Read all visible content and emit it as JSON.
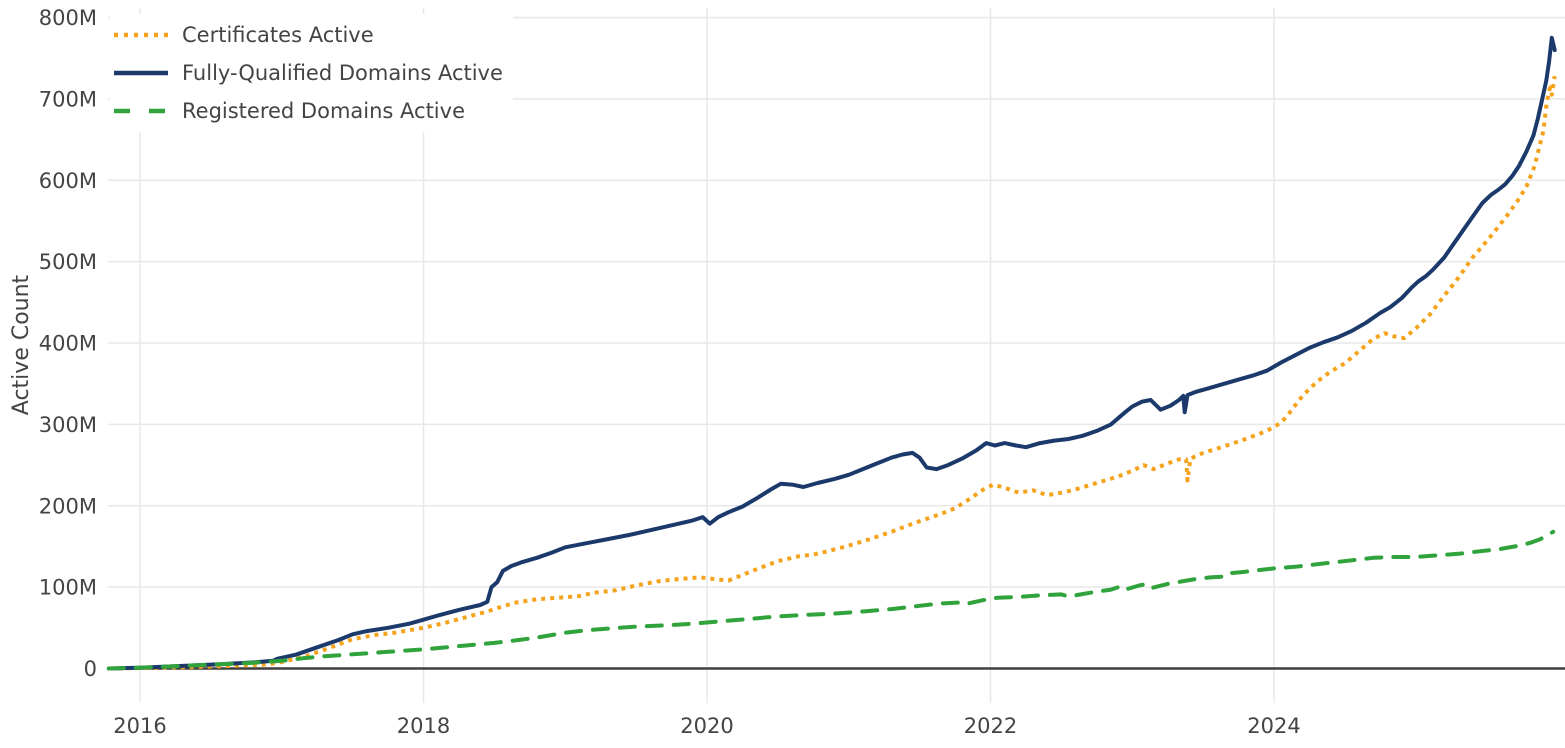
{
  "chart_data": {
    "type": "line",
    "title": "",
    "xlabel": "",
    "ylabel": "Active Count",
    "grid": true,
    "legend_position": "top-left",
    "x_range": [
      2015.75,
      2026.1
    ],
    "y_range": [
      0,
      800
    ],
    "y_unit": "millions",
    "x_ticks": [
      {
        "value": 2016,
        "label": "2016"
      },
      {
        "value": 2018,
        "label": "2018"
      },
      {
        "value": 2020,
        "label": "2020"
      },
      {
        "value": 2022,
        "label": "2022"
      },
      {
        "value": 2024,
        "label": "2024"
      }
    ],
    "y_ticks": [
      {
        "value": 0,
        "label": "0"
      },
      {
        "value": 100,
        "label": "100M"
      },
      {
        "value": 200,
        "label": "200M"
      },
      {
        "value": 300,
        "label": "300M"
      },
      {
        "value": 400,
        "label": "400M"
      },
      {
        "value": 500,
        "label": "500M"
      },
      {
        "value": 600,
        "label": "600M"
      },
      {
        "value": 700,
        "label": "700M"
      },
      {
        "value": 800,
        "label": "800M"
      }
    ],
    "series": [
      {
        "name": "Certificates Active",
        "color": "#f5a31c",
        "style": "dotted",
        "points": [
          [
            2015.78,
            0
          ],
          [
            2016.0,
            0.5
          ],
          [
            2016.3,
            1.5
          ],
          [
            2016.6,
            3
          ],
          [
            2016.9,
            5
          ],
          [
            2017.0,
            8
          ],
          [
            2017.15,
            14
          ],
          [
            2017.3,
            23
          ],
          [
            2017.5,
            36
          ],
          [
            2017.65,
            41
          ],
          [
            2017.8,
            44
          ],
          [
            2018.0,
            50
          ],
          [
            2018.15,
            56
          ],
          [
            2018.3,
            63
          ],
          [
            2018.45,
            70
          ],
          [
            2018.55,
            76
          ],
          [
            2018.65,
            81
          ],
          [
            2018.8,
            85
          ],
          [
            2018.95,
            87
          ],
          [
            2019.1,
            89
          ],
          [
            2019.2,
            93
          ],
          [
            2019.35,
            96
          ],
          [
            2019.5,
            102
          ],
          [
            2019.65,
            107
          ],
          [
            2019.8,
            110
          ],
          [
            2019.95,
            112
          ],
          [
            2020.05,
            110
          ],
          [
            2020.15,
            108
          ],
          [
            2020.25,
            115
          ],
          [
            2020.35,
            122
          ],
          [
            2020.5,
            132
          ],
          [
            2020.65,
            138
          ],
          [
            2020.75,
            140
          ],
          [
            2020.85,
            144
          ],
          [
            2021.0,
            151
          ],
          [
            2021.15,
            159
          ],
          [
            2021.3,
            168
          ],
          [
            2021.45,
            178
          ],
          [
            2021.55,
            184
          ],
          [
            2021.65,
            190
          ],
          [
            2021.75,
            197
          ],
          [
            2021.85,
            208
          ],
          [
            2021.95,
            220
          ],
          [
            2022.02,
            226
          ],
          [
            2022.1,
            222
          ],
          [
            2022.2,
            216
          ],
          [
            2022.3,
            219
          ],
          [
            2022.4,
            213
          ],
          [
            2022.5,
            216
          ],
          [
            2022.6,
            220
          ],
          [
            2022.75,
            228
          ],
          [
            2022.9,
            236
          ],
          [
            2023.0,
            243
          ],
          [
            2023.08,
            250
          ],
          [
            2023.15,
            245
          ],
          [
            2023.25,
            252
          ],
          [
            2023.33,
            257
          ],
          [
            2023.38,
            257
          ],
          [
            2023.39,
            231
          ],
          [
            2023.41,
            258
          ],
          [
            2023.5,
            265
          ],
          [
            2023.65,
            273
          ],
          [
            2023.8,
            282
          ],
          [
            2023.95,
            292
          ],
          [
            2024.05,
            302
          ],
          [
            2024.1,
            312
          ],
          [
            2024.2,
            335
          ],
          [
            2024.3,
            352
          ],
          [
            2024.4,
            365
          ],
          [
            2024.5,
            375
          ],
          [
            2024.6,
            390
          ],
          [
            2024.7,
            405
          ],
          [
            2024.78,
            412
          ],
          [
            2024.85,
            408
          ],
          [
            2024.92,
            406
          ],
          [
            2025.0,
            418
          ],
          [
            2025.1,
            435
          ],
          [
            2025.2,
            458
          ],
          [
            2025.3,
            480
          ],
          [
            2025.4,
            505
          ],
          [
            2025.5,
            525
          ],
          [
            2025.57,
            540
          ],
          [
            2025.65,
            558
          ],
          [
            2025.72,
            575
          ],
          [
            2025.78,
            592
          ],
          [
            2025.84,
            618
          ],
          [
            2025.87,
            640
          ],
          [
            2025.9,
            660
          ],
          [
            2025.92,
            690
          ],
          [
            2025.94,
            710
          ],
          [
            2025.95,
            714
          ],
          [
            2025.96,
            705
          ],
          [
            2025.98,
            728
          ]
        ]
      },
      {
        "name": "Fully-Qualified Domains Active",
        "color": "#1b3a6b",
        "style": "solid",
        "points": [
          [
            2015.78,
            0
          ],
          [
            2016.0,
            1
          ],
          [
            2016.2,
            2.5
          ],
          [
            2016.4,
            4
          ],
          [
            2016.6,
            5.5
          ],
          [
            2016.8,
            7.5
          ],
          [
            2016.94,
            9.5
          ],
          [
            2016.97,
            12
          ],
          [
            2017.1,
            17
          ],
          [
            2017.25,
            26
          ],
          [
            2017.4,
            35
          ],
          [
            2017.5,
            42
          ],
          [
            2017.6,
            46
          ],
          [
            2017.75,
            50
          ],
          [
            2017.9,
            55
          ],
          [
            2018.0,
            60
          ],
          [
            2018.1,
            65
          ],
          [
            2018.25,
            72
          ],
          [
            2018.4,
            78
          ],
          [
            2018.45,
            82
          ],
          [
            2018.48,
            100
          ],
          [
            2018.52,
            106
          ],
          [
            2018.56,
            120
          ],
          [
            2018.62,
            126
          ],
          [
            2018.7,
            131
          ],
          [
            2018.8,
            136
          ],
          [
            2018.9,
            142
          ],
          [
            2019.0,
            149
          ],
          [
            2019.15,
            154
          ],
          [
            2019.3,
            159
          ],
          [
            2019.45,
            164
          ],
          [
            2019.6,
            170
          ],
          [
            2019.75,
            176
          ],
          [
            2019.9,
            182
          ],
          [
            2019.97,
            186
          ],
          [
            2020.02,
            178
          ],
          [
            2020.08,
            186
          ],
          [
            2020.15,
            192
          ],
          [
            2020.25,
            199
          ],
          [
            2020.35,
            209
          ],
          [
            2020.45,
            220
          ],
          [
            2020.52,
            227
          ],
          [
            2020.6,
            226
          ],
          [
            2020.68,
            223
          ],
          [
            2020.78,
            228
          ],
          [
            2020.9,
            233
          ],
          [
            2021.0,
            238
          ],
          [
            2021.1,
            245
          ],
          [
            2021.2,
            252
          ],
          [
            2021.3,
            259
          ],
          [
            2021.38,
            263
          ],
          [
            2021.45,
            265
          ],
          [
            2021.5,
            259
          ],
          [
            2021.55,
            247
          ],
          [
            2021.62,
            245
          ],
          [
            2021.7,
            250
          ],
          [
            2021.8,
            258
          ],
          [
            2021.9,
            268
          ],
          [
            2021.97,
            277
          ],
          [
            2022.03,
            274
          ],
          [
            2022.1,
            277
          ],
          [
            2022.18,
            274
          ],
          [
            2022.25,
            272
          ],
          [
            2022.35,
            277
          ],
          [
            2022.45,
            280
          ],
          [
            2022.55,
            282
          ],
          [
            2022.65,
            286
          ],
          [
            2022.75,
            292
          ],
          [
            2022.85,
            300
          ],
          [
            2022.95,
            315
          ],
          [
            2023.0,
            322
          ],
          [
            2023.07,
            328
          ],
          [
            2023.13,
            330
          ],
          [
            2023.2,
            318
          ],
          [
            2023.27,
            323
          ],
          [
            2023.33,
            330
          ],
          [
            2023.36,
            335
          ],
          [
            2023.37,
            315
          ],
          [
            2023.39,
            336
          ],
          [
            2023.45,
            340
          ],
          [
            2023.55,
            345
          ],
          [
            2023.65,
            350
          ],
          [
            2023.75,
            355
          ],
          [
            2023.85,
            360
          ],
          [
            2023.95,
            366
          ],
          [
            2024.05,
            376
          ],
          [
            2024.15,
            385
          ],
          [
            2024.25,
            394
          ],
          [
            2024.35,
            401
          ],
          [
            2024.45,
            407
          ],
          [
            2024.55,
            415
          ],
          [
            2024.65,
            425
          ],
          [
            2024.75,
            437
          ],
          [
            2024.82,
            444
          ],
          [
            2024.9,
            455
          ],
          [
            2024.97,
            468
          ],
          [
            2025.02,
            476
          ],
          [
            2025.07,
            482
          ],
          [
            2025.12,
            490
          ],
          [
            2025.2,
            505
          ],
          [
            2025.3,
            530
          ],
          [
            2025.4,
            555
          ],
          [
            2025.47,
            572
          ],
          [
            2025.53,
            582
          ],
          [
            2025.58,
            588
          ],
          [
            2025.63,
            595
          ],
          [
            2025.68,
            605
          ],
          [
            2025.73,
            618
          ],
          [
            2025.78,
            635
          ],
          [
            2025.83,
            655
          ],
          [
            2025.86,
            675
          ],
          [
            2025.89,
            698
          ],
          [
            2025.92,
            722
          ],
          [
            2025.94,
            745
          ],
          [
            2025.96,
            775
          ],
          [
            2025.98,
            760
          ]
        ]
      },
      {
        "name": "Registered Domains Active",
        "color": "#31a33c",
        "style": "dashed",
        "points": [
          [
            2015.78,
            0
          ],
          [
            2016.0,
            1
          ],
          [
            2016.2,
            2.5
          ],
          [
            2016.4,
            4
          ],
          [
            2016.6,
            5.5
          ],
          [
            2016.8,
            7
          ],
          [
            2017.0,
            9.5
          ],
          [
            2017.15,
            12.5
          ],
          [
            2017.3,
            15
          ],
          [
            2017.5,
            17.5
          ],
          [
            2017.75,
            20.5
          ],
          [
            2018.0,
            23.5
          ],
          [
            2018.25,
            27.5
          ],
          [
            2018.5,
            31.5
          ],
          [
            2018.65,
            34.5
          ],
          [
            2018.8,
            38
          ],
          [
            2019.0,
            44
          ],
          [
            2019.15,
            47
          ],
          [
            2019.3,
            49
          ],
          [
            2019.5,
            51.5
          ],
          [
            2019.7,
            53
          ],
          [
            2019.9,
            55
          ],
          [
            2020.1,
            58
          ],
          [
            2020.3,
            61
          ],
          [
            2020.5,
            64
          ],
          [
            2020.7,
            66
          ],
          [
            2020.9,
            67.5
          ],
          [
            2021.1,
            70
          ],
          [
            2021.3,
            73
          ],
          [
            2021.5,
            77
          ],
          [
            2021.65,
            80
          ],
          [
            2021.78,
            81
          ],
          [
            2021.82,
            79
          ],
          [
            2021.95,
            84
          ],
          [
            2022.05,
            87
          ],
          [
            2022.2,
            88
          ],
          [
            2022.35,
            90
          ],
          [
            2022.5,
            91
          ],
          [
            2022.55,
            88.5
          ],
          [
            2022.7,
            93
          ],
          [
            2022.85,
            97
          ],
          [
            2022.92,
            101
          ],
          [
            2022.95,
            97
          ],
          [
            2023.05,
            102
          ],
          [
            2023.1,
            104
          ],
          [
            2023.14,
            99
          ],
          [
            2023.25,
            104
          ],
          [
            2023.35,
            107
          ],
          [
            2023.45,
            110
          ],
          [
            2023.55,
            112
          ],
          [
            2023.65,
            113
          ],
          [
            2023.68,
            117
          ],
          [
            2023.8,
            119
          ],
          [
            2023.9,
            121
          ],
          [
            2024.0,
            123
          ],
          [
            2024.15,
            125
          ],
          [
            2024.3,
            128
          ],
          [
            2024.45,
            131
          ],
          [
            2024.6,
            134
          ],
          [
            2024.7,
            136
          ],
          [
            2024.85,
            137
          ],
          [
            2025.0,
            137
          ],
          [
            2025.15,
            139
          ],
          [
            2025.3,
            141
          ],
          [
            2025.45,
            144
          ],
          [
            2025.6,
            147
          ],
          [
            2025.7,
            150
          ],
          [
            2025.8,
            154
          ],
          [
            2025.88,
            159
          ],
          [
            2025.97,
            168
          ]
        ]
      }
    ]
  }
}
